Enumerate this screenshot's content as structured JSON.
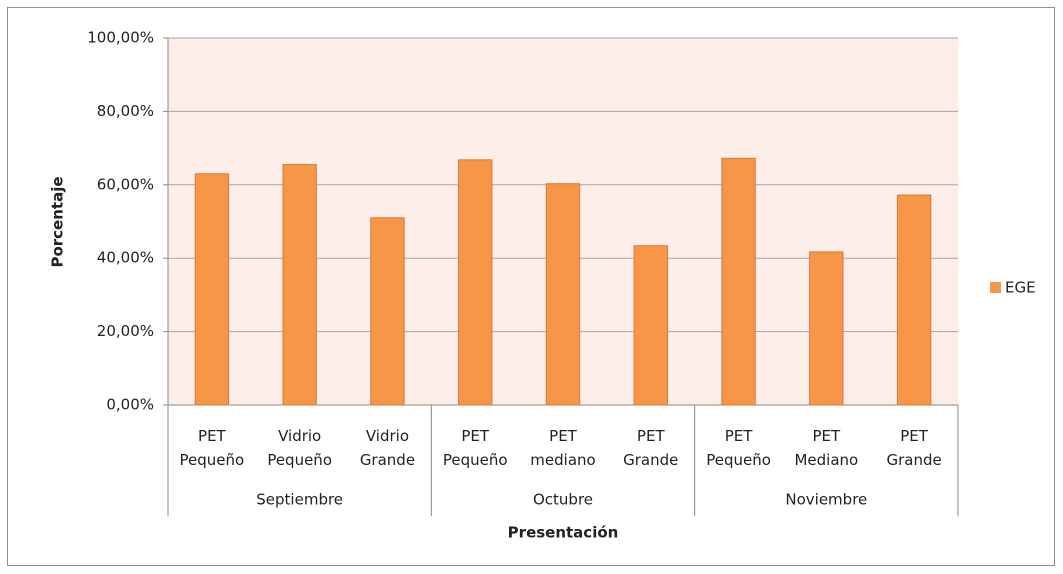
{
  "chart_data": {
    "type": "bar",
    "y_label": "Porcentaje",
    "x_label": "Presentación",
    "groups": [
      {
        "name": "Septiembre",
        "categories": [
          "PET Pequeño",
          "Vidrio Pequeño",
          "Vidrio Grande"
        ]
      },
      {
        "name": "Octubre",
        "categories": [
          "PET Pequeño",
          "PET mediano",
          "PET Grande"
        ]
      },
      {
        "name": "Noviembre",
        "categories": [
          "PET Pequeño",
          "PET Mediano",
          "PET Grande"
        ]
      }
    ],
    "series": [
      {
        "name": "EGE",
        "color": "#f79646",
        "values": [
          63.0,
          65.5,
          51.0,
          66.8,
          60.3,
          43.4,
          67.2,
          41.7,
          57.2
        ]
      }
    ],
    "ylim": [
      0,
      100
    ],
    "yticks": [
      {
        "value": 0,
        "label": "0,00%"
      },
      {
        "value": 20,
        "label": "20,00%"
      },
      {
        "value": 40,
        "label": "40,00%"
      },
      {
        "value": 60,
        "label": "60,00%"
      },
      {
        "value": 80,
        "label": "80,00%"
      },
      {
        "value": 100,
        "label": "100,00%"
      }
    ],
    "grid": true,
    "legend": "right"
  }
}
